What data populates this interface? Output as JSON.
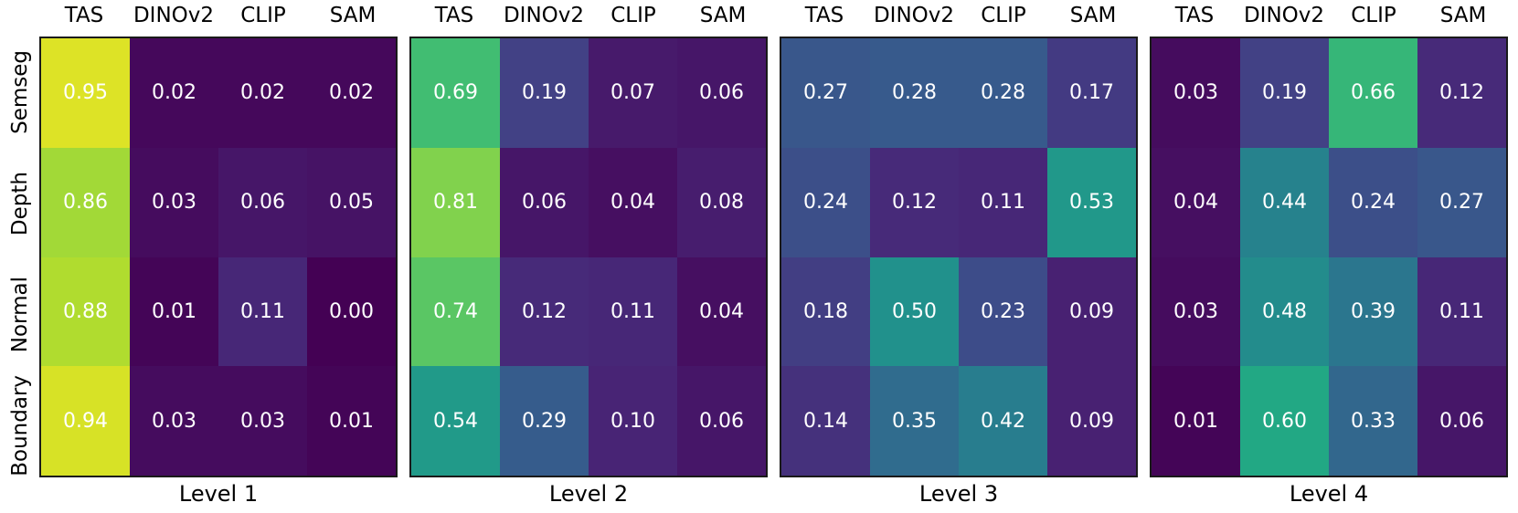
{
  "chart_data": {
    "type": "heatmap",
    "columns": [
      "TAS",
      "DINOv2",
      "CLIP",
      "SAM"
    ],
    "rows": [
      "Semseg",
      "Depth",
      "Normal",
      "Boundary"
    ],
    "panels": [
      {
        "label": "Level 1",
        "values": [
          [
            0.95,
            0.02,
            0.02,
            0.02
          ],
          [
            0.86,
            0.03,
            0.06,
            0.05
          ],
          [
            0.88,
            0.01,
            0.11,
            0.0
          ],
          [
            0.94,
            0.03,
            0.03,
            0.01
          ]
        ]
      },
      {
        "label": "Level 2",
        "values": [
          [
            0.69,
            0.19,
            0.07,
            0.06
          ],
          [
            0.81,
            0.06,
            0.04,
            0.08
          ],
          [
            0.74,
            0.12,
            0.11,
            0.04
          ],
          [
            0.54,
            0.29,
            0.1,
            0.06
          ]
        ]
      },
      {
        "label": "Level 3",
        "values": [
          [
            0.27,
            0.28,
            0.28,
            0.17
          ],
          [
            0.24,
            0.12,
            0.11,
            0.53
          ],
          [
            0.18,
            0.5,
            0.23,
            0.09
          ],
          [
            0.14,
            0.35,
            0.42,
            0.09
          ]
        ]
      },
      {
        "label": "Level 4",
        "values": [
          [
            0.03,
            0.19,
            0.66,
            0.12
          ],
          [
            0.04,
            0.44,
            0.24,
            0.27
          ],
          [
            0.03,
            0.48,
            0.39,
            0.11
          ],
          [
            0.01,
            0.6,
            0.33,
            0.06
          ]
        ]
      }
    ],
    "value_range": [
      0,
      1
    ],
    "value_format_decimals": 2,
    "grid": false,
    "legend": "none",
    "colormap": {
      "name": "viridis",
      "stops": [
        "#440154",
        "#482475",
        "#414487",
        "#355f8d",
        "#2a788e",
        "#21918c",
        "#22a884",
        "#44bf70",
        "#7ad151",
        "#bddf26",
        "#fde725"
      ]
    },
    "cell_text_color": "#ffffff",
    "axis_border_color": "#1a1a1a",
    "label_color": "#000000",
    "background": "#ffffff"
  }
}
